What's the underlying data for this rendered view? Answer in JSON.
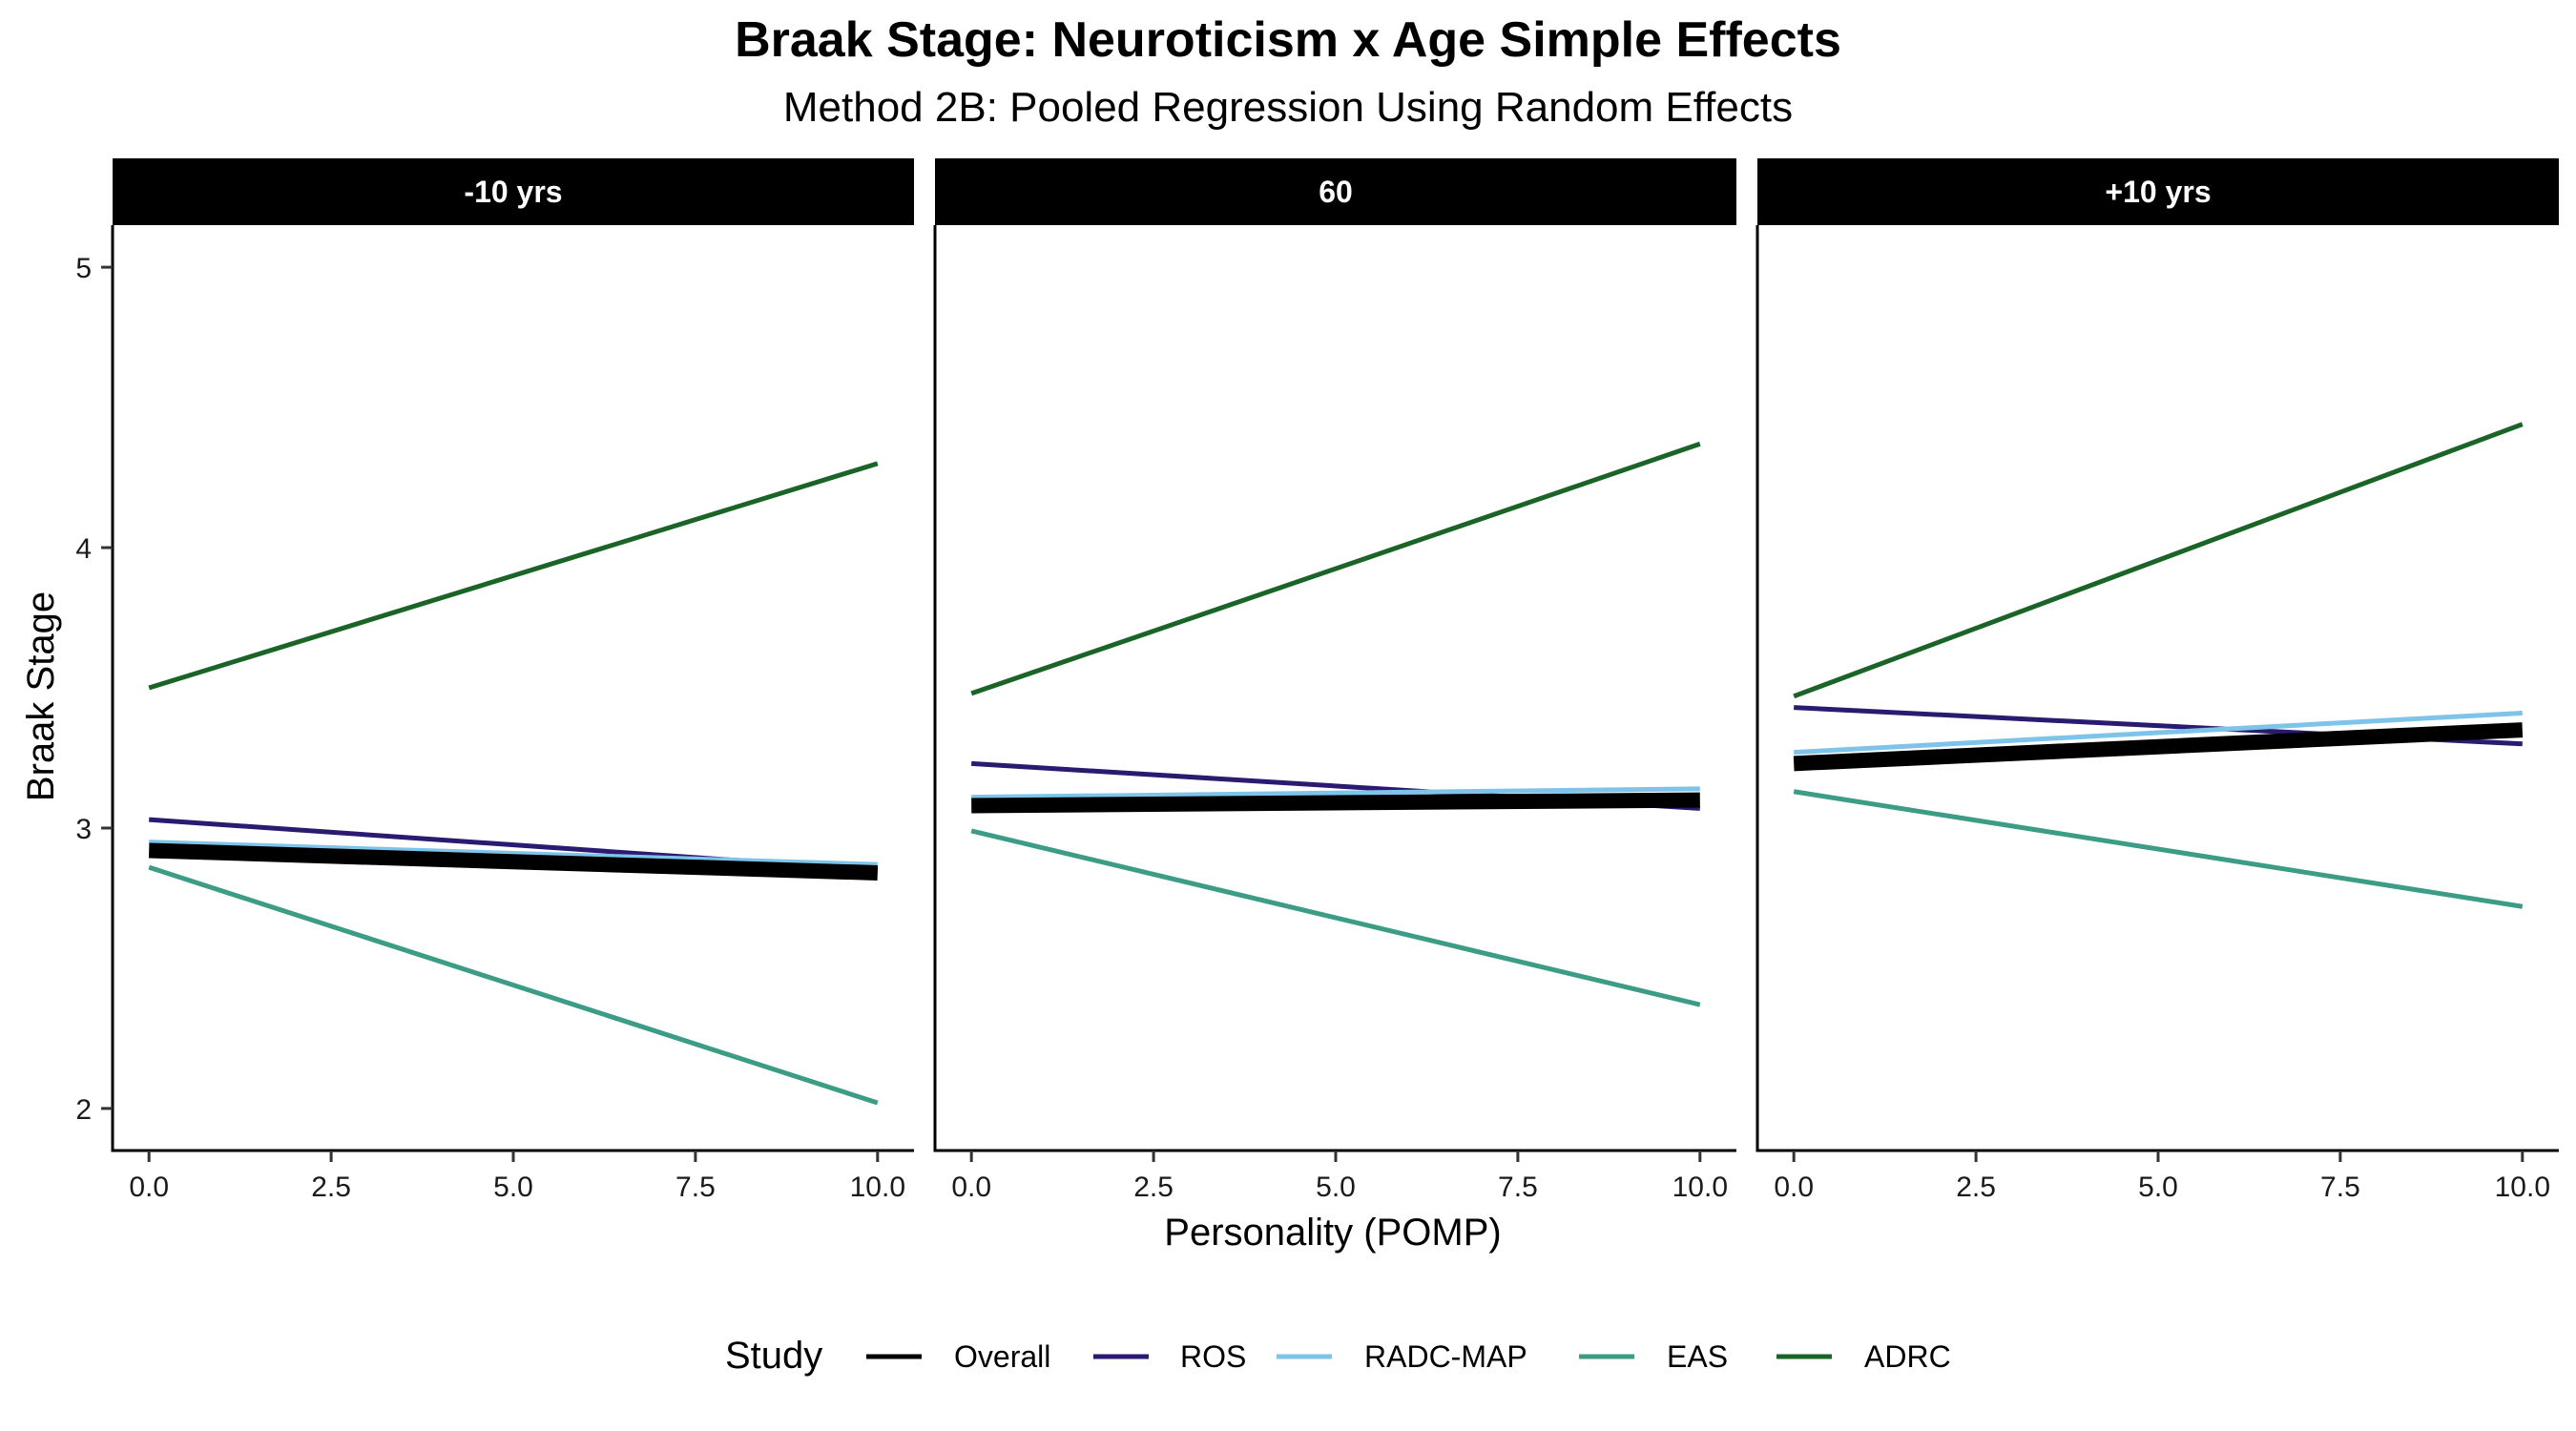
{
  "chart_data": {
    "type": "line",
    "title": "Braak Stage: Neuroticism x Age Simple Effects",
    "subtitle": "Method 2B: Pooled Regression Using Random Effects",
    "xlabel": "Personality (POMP)",
    "ylabel": "Braak Stage",
    "xlim": [
      -0.5,
      10.5
    ],
    "ylim": [
      1.85,
      5.15
    ],
    "x_ticks": [
      "0.0",
      "2.5",
      "5.0",
      "7.5",
      "10.0"
    ],
    "y_ticks": [
      "2",
      "3",
      "4",
      "5"
    ],
    "legend_title": "Study",
    "legend_position": "bottom",
    "series_styles": [
      {
        "name": "Overall",
        "color": "#000000",
        "width": "thick"
      },
      {
        "name": "ROS",
        "color": "#2a1a70",
        "width": "normal"
      },
      {
        "name": "RADC-MAP",
        "color": "#7ec4ea",
        "width": "normal"
      },
      {
        "name": "EAS",
        "color": "#3c9c86",
        "width": "normal"
      },
      {
        "name": "ADRC",
        "color": "#1a6428",
        "width": "normal"
      }
    ],
    "panels": [
      {
        "label": "-10 yrs",
        "x": [
          0,
          10
        ],
        "series": [
          {
            "name": "Overall",
            "values": [
              2.92,
              2.84
            ]
          },
          {
            "name": "ROS",
            "values": [
              3.03,
              2.85
            ]
          },
          {
            "name": "RADC-MAP",
            "values": [
              2.95,
              2.87
            ]
          },
          {
            "name": "EAS",
            "values": [
              2.86,
              2.02
            ]
          },
          {
            "name": "ADRC",
            "values": [
              3.5,
              4.3
            ]
          }
        ]
      },
      {
        "label": "60",
        "x": [
          0,
          10
        ],
        "series": [
          {
            "name": "Overall",
            "values": [
              3.08,
              3.1
            ]
          },
          {
            "name": "ROS",
            "values": [
              3.23,
              3.07
            ]
          },
          {
            "name": "RADC-MAP",
            "values": [
              3.11,
              3.14
            ]
          },
          {
            "name": "EAS",
            "values": [
              2.99,
              2.37
            ]
          },
          {
            "name": "ADRC",
            "values": [
              3.48,
              4.37
            ]
          }
        ]
      },
      {
        "label": "+10 yrs",
        "x": [
          0,
          10
        ],
        "series": [
          {
            "name": "Overall",
            "values": [
              3.23,
              3.35
            ]
          },
          {
            "name": "ROS",
            "values": [
              3.43,
              3.3
            ]
          },
          {
            "name": "RADC-MAP",
            "values": [
              3.27,
              3.41
            ]
          },
          {
            "name": "EAS",
            "values": [
              3.13,
              2.72
            ]
          },
          {
            "name": "ADRC",
            "values": [
              3.47,
              4.44
            ]
          }
        ]
      }
    ]
  }
}
